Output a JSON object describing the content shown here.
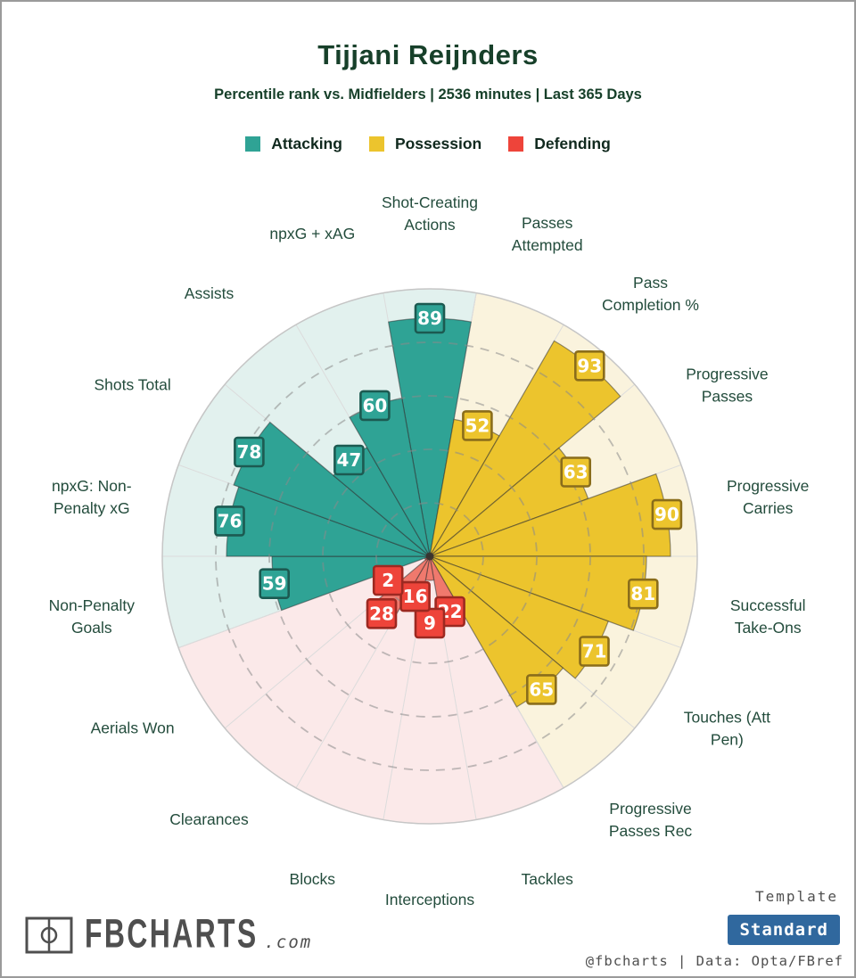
{
  "header": {
    "title": "Tijjani Reijnders",
    "subtitle": "Percentile rank vs. Midfielders | 2536 minutes | Last 365 Days"
  },
  "legend": {
    "items": [
      {
        "label": "Attacking",
        "color": "#2fa395"
      },
      {
        "label": "Possession",
        "color": "#ecc42d"
      },
      {
        "label": "Defending",
        "color": "#ee443a"
      }
    ]
  },
  "chart_data": {
    "type": "bar",
    "variant": "polar-pizza",
    "title": "Tijjani Reijnders",
    "subtitle": "Percentile rank vs. Midfielders | 2536 minutes | Last 365 Days",
    "radial_axis": {
      "min": 0,
      "max": 100,
      "gridlines": [
        20,
        40,
        60,
        80
      ],
      "grid_style": "dashed"
    },
    "layout": {
      "start": "first category centered at 12 o'clock",
      "direction": "clockwise",
      "legend_position": "top"
    },
    "groups": [
      {
        "name": "Attacking",
        "color": "#2fa395",
        "wedge_color": "#2fa395",
        "bg_color": "#e2f1ee",
        "badge_border": "#1c5a51"
      },
      {
        "name": "Possession",
        "color": "#ecc42d",
        "wedge_color": "#ecc42d",
        "bg_color": "#faf3dd",
        "badge_border": "#8a6d1b"
      },
      {
        "name": "Defending",
        "color": "#ee443a",
        "wedge_color": "#f0796d",
        "bg_color": "#fbe9e9",
        "badge_border": "#9c2921"
      }
    ],
    "categories": [
      {
        "label": "Shot-Creating\nActions",
        "group": "Attacking",
        "value": 89
      },
      {
        "label": "Passes\nAttempted",
        "group": "Possession",
        "value": 52
      },
      {
        "label": "Pass\nCompletion %",
        "group": "Possession",
        "value": 93
      },
      {
        "label": "Progressive\nPasses",
        "group": "Possession",
        "value": 63
      },
      {
        "label": "Progressive\nCarries",
        "group": "Possession",
        "value": 90
      },
      {
        "label": "Successful\nTake-Ons",
        "group": "Possession",
        "value": 81
      },
      {
        "label": "Touches (Att\nPen)",
        "group": "Possession",
        "value": 71
      },
      {
        "label": "Progressive\nPasses Rec",
        "group": "Possession",
        "value": 65
      },
      {
        "label": "Tackles",
        "group": "Defending",
        "value": 22
      },
      {
        "label": "Interceptions",
        "group": "Defending",
        "value": 9,
        "badge_r": 25
      },
      {
        "label": "Blocks",
        "group": "Defending",
        "value": 16
      },
      {
        "label": "Clearances",
        "group": "Defending",
        "value": 28
      },
      {
        "label": "Aerials Won",
        "group": "Defending",
        "value": 2,
        "badge_r": 18
      },
      {
        "label": "Non-Penalty\nGoals",
        "group": "Attacking",
        "value": 59
      },
      {
        "label": "npxG: Non-\nPenalty xG",
        "group": "Attacking",
        "value": 76
      },
      {
        "label": "Shots Total",
        "group": "Attacking",
        "value": 78
      },
      {
        "label": "Assists",
        "group": "Attacking",
        "value": 47
      },
      {
        "label": "npxG + xAG",
        "group": "Attacking",
        "value": 60
      }
    ]
  },
  "footer": {
    "brand": "FBCHARTS",
    "brand_suffix": ".com",
    "template_label": "Template",
    "template_value": "Standard",
    "credit": "@fbcharts | Data: Opta/FBref"
  },
  "colors": {
    "title": "#17402a",
    "subtitle": "#17402a",
    "category_label": "#234c3c",
    "footer_text": "#4f4f4f",
    "template_button_bg": "#30689e",
    "template_button_text": "#ffffff"
  }
}
